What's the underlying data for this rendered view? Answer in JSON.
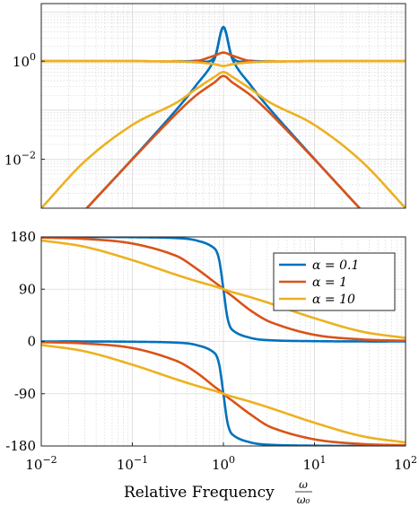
{
  "figure": {
    "xlabel": "Relative Frequency",
    "xlabel_fraction": {
      "numerator": "ω",
      "denominator": "ω₀"
    }
  },
  "chart_data": [
    {
      "type": "line",
      "panel": "magnitude",
      "x_scale": "log",
      "y_scale": "log",
      "xlim": [
        0.01,
        100
      ],
      "ylim": [
        0.001,
        15
      ],
      "y_tick_labels": [
        "10^0",
        "10^-2"
      ],
      "y_ticks": [
        1,
        0.01
      ],
      "grid": true,
      "x": [
        0.01,
        0.03,
        0.1,
        0.3,
        0.5,
        0.8,
        1,
        1.25,
        2,
        3.33,
        10,
        33,
        100
      ],
      "series": [
        {
          "name": "α = 0.1",
          "color": "#0072BD",
          "group": "low",
          "values": [
            0.0001,
            0.0009,
            0.0101,
            0.099,
            0.32,
            1.12,
            5.0,
            1.12,
            0.32,
            0.099,
            0.0101,
            0.0009,
            0.0001
          ]
        },
        {
          "name": "α = 0.1",
          "color": "#0072BD",
          "group": "high",
          "values": [
            1.0,
            1.0,
            1.0,
            1.0,
            1.02,
            1.2,
            5.0,
            1.2,
            1.02,
            1.0,
            1.0,
            1.0,
            1.0
          ]
        },
        {
          "name": "α = 1",
          "color": "#D95319",
          "group": "low",
          "values": [
            0.0001,
            0.0009,
            0.0099,
            0.083,
            0.2,
            0.37,
            0.5,
            0.37,
            0.2,
            0.083,
            0.0099,
            0.0009,
            0.0001
          ]
        },
        {
          "name": "α = 1",
          "color": "#D95319",
          "group": "high",
          "values": [
            1.0,
            1.0,
            1.0,
            0.99,
            1.0,
            1.3,
            1.5,
            1.3,
            1.0,
            0.99,
            1.0,
            1.0,
            1.0
          ]
        },
        {
          "name": "α = 10",
          "color": "#EDB120",
          "group": "low",
          "values": [
            0.001,
            0.009,
            0.05,
            0.14,
            0.27,
            0.48,
            0.6,
            0.48,
            0.27,
            0.14,
            0.05,
            0.009,
            0.001
          ]
        },
        {
          "name": "α = 10",
          "color": "#EDB120",
          "group": "high",
          "values": [
            1.0,
            1.0,
            1.0,
            0.99,
            0.95,
            0.87,
            0.8,
            0.87,
            0.95,
            0.99,
            1.0,
            1.0,
            1.0
          ]
        }
      ]
    },
    {
      "type": "line",
      "panel": "phase",
      "x_scale": "log",
      "xlim": [
        0.01,
        100
      ],
      "ylim": [
        -180,
        180
      ],
      "y_ticks": [
        180,
        90,
        0,
        -90,
        -180
      ],
      "y_tick_labels": [
        "180",
        "90",
        "0",
        "-90",
        "-180"
      ],
      "x_ticks": [
        0.01,
        0.1,
        1,
        10,
        100
      ],
      "x_tick_labels": [
        {
          "base": "10",
          "exp": "−2"
        },
        {
          "base": "10",
          "exp": "−1"
        },
        {
          "base": "10",
          "exp": "0"
        },
        {
          "base": "10",
          "exp": "1"
        },
        {
          "base": "10",
          "exp": "2"
        }
      ],
      "grid": true,
      "legend": {
        "placement": "top-right",
        "entries": [
          "α = 0.1",
          "α = 1",
          "α = 10"
        ]
      },
      "x": [
        0.01,
        0.03,
        0.1,
        0.3,
        0.5,
        0.8,
        0.9,
        1,
        1.11,
        1.25,
        2,
        3.33,
        10,
        33,
        100
      ],
      "series": [
        {
          "name": "α = 0.1",
          "color": "#0072BD",
          "group": "upper",
          "values": [
            180,
            180,
            179.5,
            178,
            174,
            160,
            140,
            90,
            40,
            20,
            6,
            2,
            0.5,
            0,
            0
          ]
        },
        {
          "name": "α = 0.1",
          "color": "#0072BD",
          "group": "lower",
          "values": [
            0,
            0,
            -0.5,
            -2,
            -6,
            -20,
            -40,
            -90,
            -140,
            -160,
            -174,
            -178,
            -179.5,
            -180,
            -180
          ]
        },
        {
          "name": "α = 1",
          "color": "#D95319",
          "group": "upper",
          "values": [
            178.9,
            176.6,
            168.6,
            147.7,
            126,
            102,
            96,
            90,
            84,
            78,
            53,
            33,
            11.4,
            3.5,
            1.1
          ]
        },
        {
          "name": "α = 1",
          "color": "#D95319",
          "group": "lower",
          "values": [
            -1.1,
            -3.5,
            -11.4,
            -33,
            -53,
            -78,
            -84,
            -90,
            -96,
            -102,
            -126,
            -147.7,
            -168.6,
            -176.6,
            -178.9
          ]
        },
        {
          "name": "α = 10",
          "color": "#EDB120",
          "group": "upper",
          "values": [
            174,
            163,
            140,
            115,
            104,
            95,
            92.5,
            90,
            87.5,
            85,
            76,
            65,
            40,
            17,
            6
          ]
        },
        {
          "name": "α = 10",
          "color": "#EDB120",
          "group": "lower",
          "values": [
            -6,
            -17,
            -40,
            -65,
            -76,
            -85,
            -87.5,
            -90,
            -92.5,
            -95,
            -104,
            -115,
            -140,
            -163,
            -174
          ]
        }
      ]
    }
  ]
}
